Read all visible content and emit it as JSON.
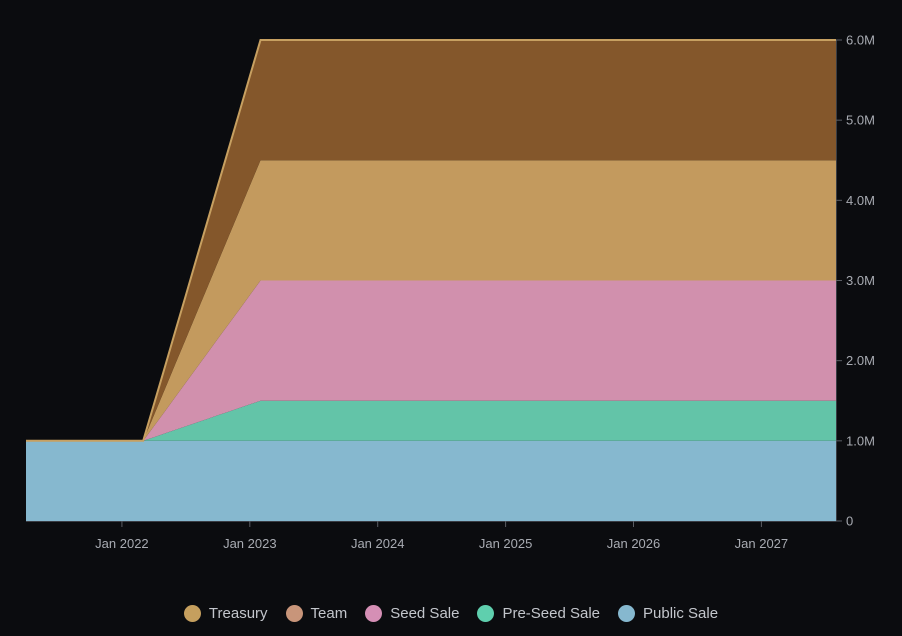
{
  "chart_data": {
    "type": "area",
    "stacked": true,
    "x_axis": {
      "ticks": [
        "Jan 2022",
        "Jan 2023",
        "Jan 2024",
        "Jan 2025",
        "Jan 2026",
        "Jan 2027"
      ],
      "range": [
        "2021-04",
        "2027-08"
      ]
    },
    "y_axis": {
      "position": "right",
      "ticks": [
        "0",
        "1.0M",
        "2.0M",
        "3.0M",
        "4.0M",
        "5.0M",
        "6.0M"
      ],
      "range": [
        0,
        6000000
      ]
    },
    "grid": false,
    "legend_position": "bottom",
    "series": [
      {
        "name": "Public Sale",
        "color": "#86b8cf",
        "points": [
          [
            "2021-04",
            1000000
          ],
          [
            "2027-08",
            1000000
          ]
        ]
      },
      {
        "name": "Pre-Seed Sale",
        "color": "#63c4a8",
        "points": [
          [
            "2021-04",
            0
          ],
          [
            "2022-03",
            0
          ],
          [
            "2023-02",
            500000
          ],
          [
            "2027-08",
            500000
          ]
        ]
      },
      {
        "name": "Seed Sale",
        "color": "#d190ad",
        "points": [
          [
            "2021-04",
            0
          ],
          [
            "2022-03",
            0
          ],
          [
            "2023-02",
            1500000
          ],
          [
            "2027-08",
            1500000
          ]
        ]
      },
      {
        "name": "Team",
        "color": "#c39a5e",
        "points": [
          [
            "2021-04",
            0
          ],
          [
            "2022-03",
            0
          ],
          [
            "2023-02",
            1500000
          ],
          [
            "2027-08",
            1500000
          ]
        ]
      },
      {
        "name": "Treasury",
        "color": "#84572b",
        "points": [
          [
            "2021-04",
            0
          ],
          [
            "2022-03",
            0
          ],
          [
            "2023-02",
            1500000
          ],
          [
            "2027-08",
            1500000
          ]
        ]
      }
    ],
    "legend": [
      {
        "name": "Treasury",
        "color": "#c59f5e"
      },
      {
        "name": "Team",
        "color": "#c8957a"
      },
      {
        "name": "Seed Sale",
        "color": "#d58fb5"
      },
      {
        "name": "Pre-Seed Sale",
        "color": "#5fcfae"
      },
      {
        "name": "Public Sale",
        "color": "#86b8cf"
      }
    ]
  }
}
